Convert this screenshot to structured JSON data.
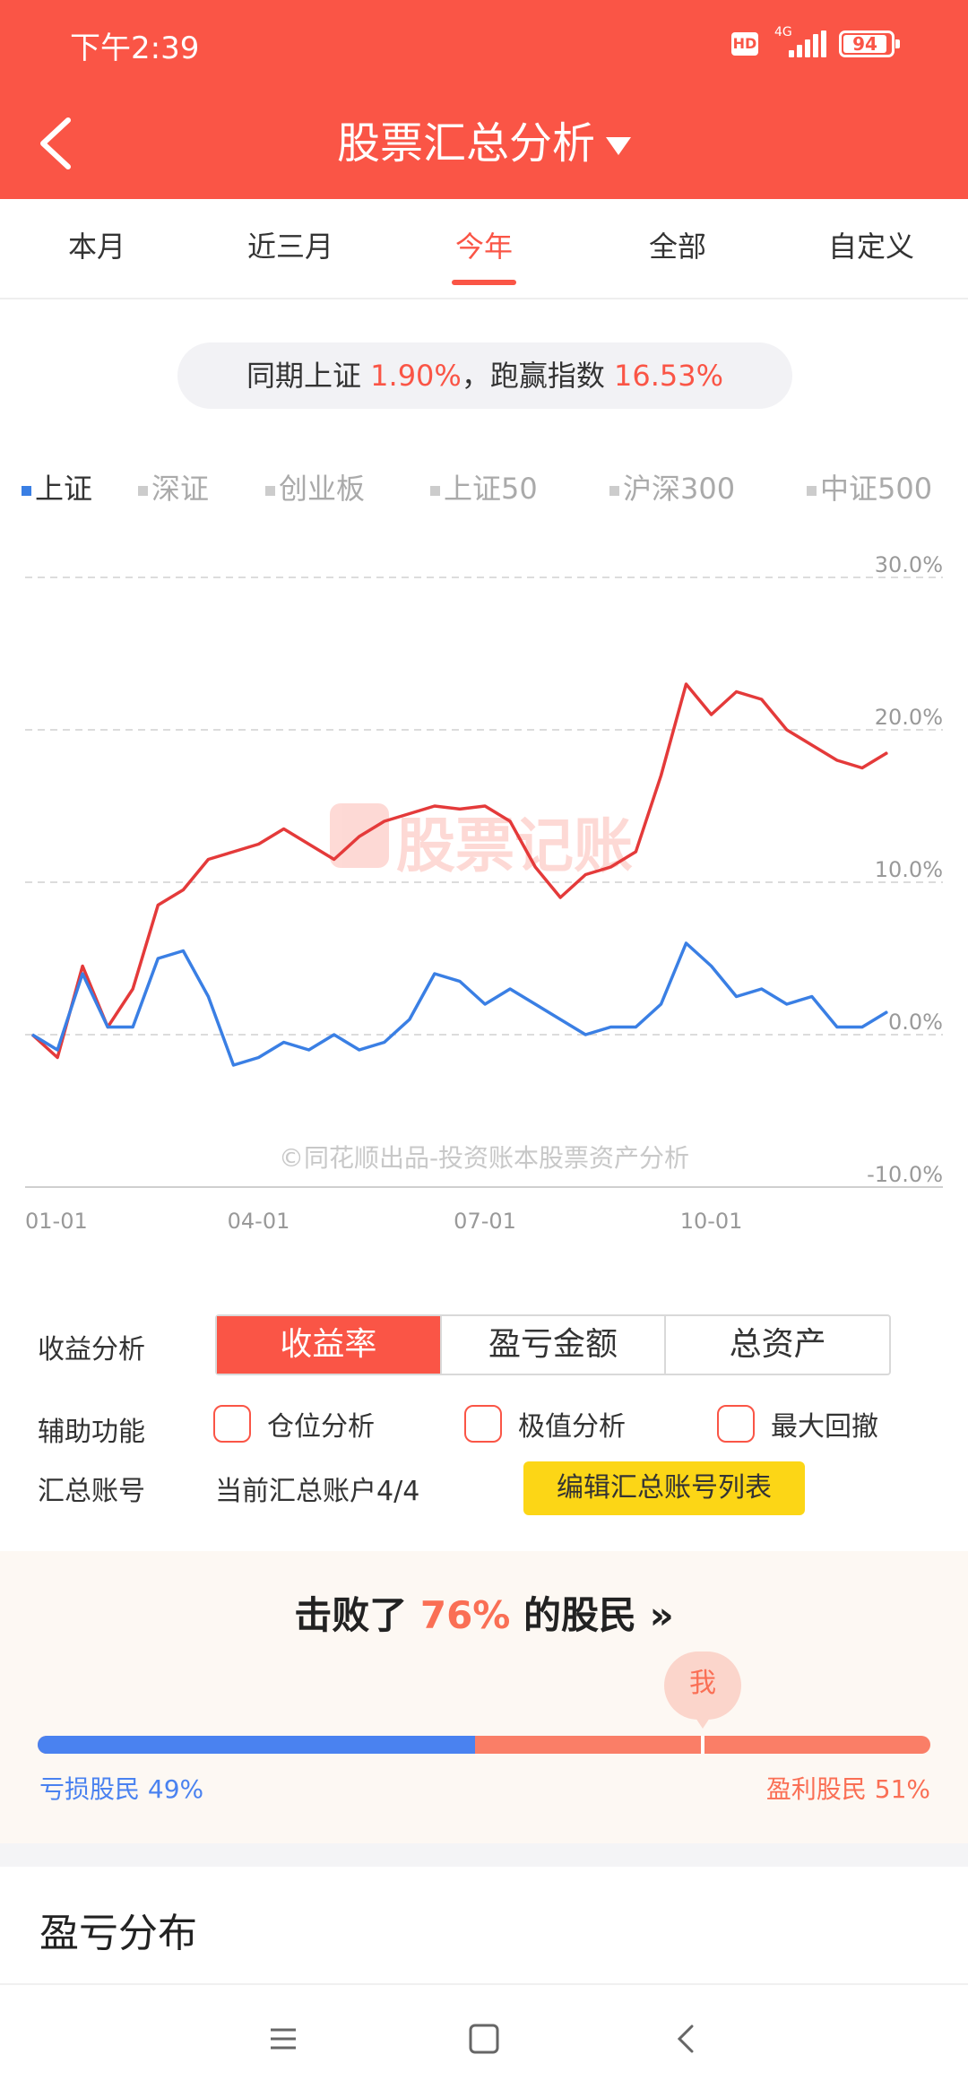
{
  "status_bar": {
    "time": "下午2:39",
    "hd": "HD",
    "network": "4G",
    "battery": "94"
  },
  "app_bar": {
    "title": "股票汇总分析"
  },
  "period_tabs": [
    {
      "label": "本月",
      "active": false
    },
    {
      "label": "近三月",
      "active": false
    },
    {
      "label": "今年",
      "active": true
    },
    {
      "label": "全部",
      "active": false
    },
    {
      "label": "自定义",
      "active": false
    }
  ],
  "summary": {
    "prefix": "同期上证",
    "index_return": "1.90%",
    "middle": "，跑赢指数",
    "outperform": "16.53%"
  },
  "index_options": [
    {
      "label": "上证",
      "active": true
    },
    {
      "label": "深证",
      "active": false
    },
    {
      "label": "创业板",
      "active": false
    },
    {
      "label": "上证50",
      "active": false
    },
    {
      "label": "沪深300",
      "active": false
    },
    {
      "label": "中证500",
      "active": false
    }
  ],
  "watermark": "股票记账",
  "copyright": "©同花顺出品-投资账本股票资产分析",
  "chart_data": {
    "type": "line",
    "ylim": [
      -10,
      30
    ],
    "y_ticks": [
      "30.0%",
      "20.0%",
      "10.0%",
      "0.0%",
      "-10.0%"
    ],
    "x_ticks": [
      "01-01",
      "04-01",
      "07-01",
      "10-01"
    ],
    "grid": true,
    "colors": {
      "portfolio": "#e43a3a",
      "index": "#3a7fe4"
    },
    "x": [
      "01-01",
      "01-10",
      "01-20",
      "01-31",
      "02-10",
      "02-20",
      "02-28",
      "03-10",
      "03-20",
      "03-31",
      "04-10",
      "04-20",
      "04-30",
      "05-10",
      "05-20",
      "05-31",
      "06-10",
      "06-20",
      "06-30",
      "07-10",
      "07-20",
      "07-31",
      "08-10",
      "08-20",
      "08-31",
      "09-10",
      "09-20",
      "09-30",
      "10-10",
      "10-20",
      "10-31",
      "11-10",
      "11-20",
      "11-30",
      "12-10"
    ],
    "series": [
      {
        "key": "portfolio",
        "values": [
          0,
          -1.5,
          4.5,
          0.5,
          3.0,
          8.5,
          9.5,
          11.5,
          12.0,
          12.5,
          13.5,
          12.5,
          11.5,
          13.0,
          14.0,
          14.5,
          15.0,
          14.8,
          15.0,
          14.0,
          11.0,
          9.0,
          10.5,
          11.0,
          12.0,
          17.0,
          23.0,
          21.0,
          22.5,
          22.0,
          20.0,
          19.0,
          18.0,
          17.5,
          18.5
        ]
      },
      {
        "key": "index",
        "values": [
          0,
          -1.0,
          4.0,
          0.5,
          0.5,
          5.0,
          5.5,
          2.5,
          -2.0,
          -1.5,
          -0.5,
          -1.0,
          0,
          -1.0,
          -0.5,
          1.0,
          4.0,
          3.5,
          2.0,
          3.0,
          2.0,
          1.0,
          0,
          0.5,
          0.5,
          2.0,
          6.0,
          4.5,
          2.5,
          3.0,
          2.0,
          2.5,
          0.5,
          0.5,
          1.5
        ]
      }
    ]
  },
  "analysis": {
    "profit_label": "收益分析",
    "metric_tabs": [
      {
        "label": "收益率",
        "active": true
      },
      {
        "label": "盈亏金额",
        "active": false
      },
      {
        "label": "总资产",
        "active": false
      }
    ],
    "aux_label": "辅助功能",
    "checkboxes": [
      {
        "label": "仓位分析",
        "checked": false
      },
      {
        "label": "极值分析",
        "checked": false
      },
      {
        "label": "最大回撤",
        "checked": false
      }
    ],
    "account_label": "汇总账号",
    "account_value": "当前汇总账户4/4",
    "edit_button": "编辑汇总账号列表"
  },
  "ranking": {
    "prefix": "击败了",
    "percent": "76%",
    "suffix": "的股民",
    "more": "»",
    "me": "我",
    "loss_label": "亏损股民",
    "loss_pct": "49%",
    "gain_label": "盈利股民",
    "gain_pct": "51%",
    "loss_share": 0.49,
    "me_position": 0.745
  },
  "section_title": "盈亏分布"
}
